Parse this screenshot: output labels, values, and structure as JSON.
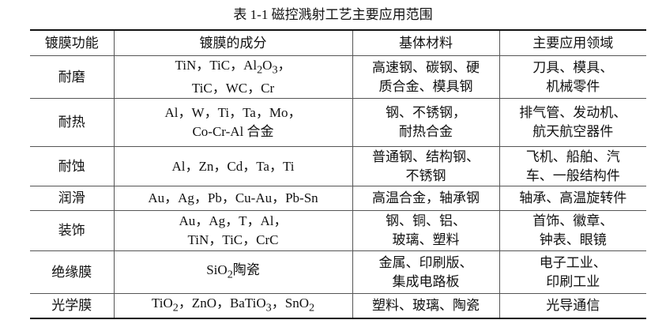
{
  "title": "表 1-1  磁控溅射工艺主要应用范围",
  "headers": [
    "镀膜功能",
    "镀膜的成分",
    "基体材料",
    "主要应用领域"
  ],
  "rows": [
    {
      "function": "耐磨",
      "composition": [
        "TiN，TiC，Al<sub>2</sub>O<sub>3</sub>，",
        "TiC，WC，Cr"
      ],
      "substrate": [
        "高速钢、碳钢、硬",
        "质合金、模具钢"
      ],
      "application": [
        "刀具、模具、",
        "机械零件"
      ]
    },
    {
      "function": "耐热",
      "composition": [
        "Al，W，Ti，Ta，Mo，",
        "Co-Cr-Al 合金"
      ],
      "substrate": [
        "钢、不锈钢，",
        "耐热合金"
      ],
      "application": [
        "排气管、发动机、",
        "航天航空器件"
      ]
    },
    {
      "function": "耐蚀",
      "composition": [
        "Al，Zn，Cd，Ta，Ti"
      ],
      "substrate": [
        "普通钢、结构钢、",
        "不锈钢"
      ],
      "application": [
        "飞机、船舶、汽",
        "车、一般结构件"
      ]
    },
    {
      "function": "润滑",
      "composition": [
        "Au，Ag，Pb，Cu-Au，Pb-Sn"
      ],
      "substrate": [
        "高温合金，轴承钢"
      ],
      "application": [
        "轴承、高温旋转件"
      ]
    },
    {
      "function": "装饰",
      "composition": [
        "Au，Ag，T，Al，",
        "TiN，TiC，CrC"
      ],
      "substrate": [
        "钢、铜、铝、",
        "玻璃、塑料"
      ],
      "application": [
        "首饰、徽章、",
        "钟表、眼镜"
      ]
    },
    {
      "function": "绝缘膜",
      "composition": [
        "SiO<sub>2</sub>陶瓷"
      ],
      "substrate": [
        "金属、印刷版、",
        "集成电路板"
      ],
      "application": [
        "电子工业、",
        "印刷工业"
      ]
    },
    {
      "function": "光学膜",
      "composition": [
        "TiO<sub>2</sub>，ZnO，BaTiO<sub>3</sub>，SnO<sub>2</sub>"
      ],
      "substrate": [
        "塑料、玻璃、陶瓷"
      ],
      "application": [
        "光导通信"
      ]
    }
  ]
}
